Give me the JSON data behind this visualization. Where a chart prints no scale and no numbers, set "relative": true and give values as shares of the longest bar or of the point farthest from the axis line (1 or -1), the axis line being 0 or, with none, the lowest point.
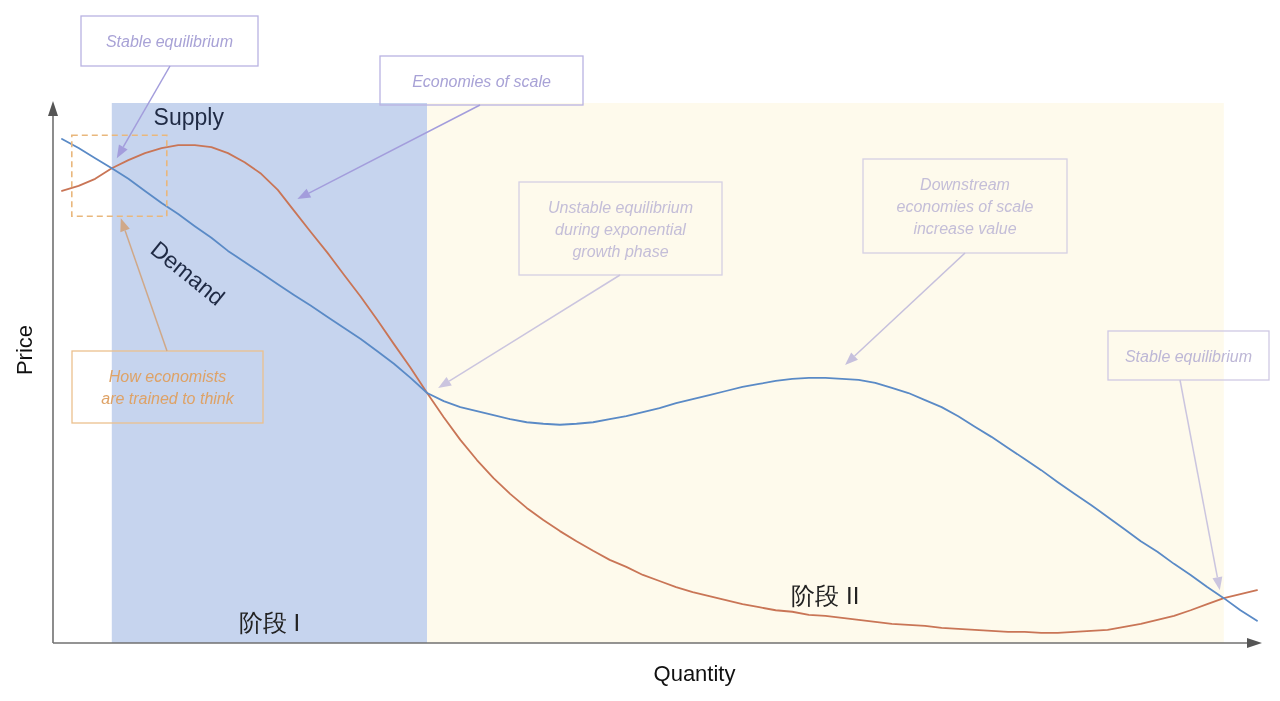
{
  "chart_data": {
    "type": "line",
    "relative": true,
    "xlabel": "Quantity",
    "ylabel": "Price",
    "categories": [
      null,
      null,
      null,
      null,
      null,
      null,
      null,
      null,
      null,
      null,
      null,
      null,
      null,
      null,
      null,
      null,
      null,
      null,
      null,
      null,
      null,
      null,
      null,
      null,
      null,
      null,
      null,
      null,
      null,
      null,
      null,
      null,
      null,
      null,
      null,
      null,
      null,
      null,
      null,
      null,
      null,
      null,
      null,
      null,
      null,
      null,
      null,
      null,
      null,
      null,
      null,
      null,
      null,
      null,
      null,
      null,
      null,
      null,
      null,
      null,
      null,
      null,
      null,
      null,
      null,
      null,
      null,
      null,
      null,
      null,
      null,
      null,
      null
    ],
    "series": [
      {
        "name": "Supply",
        "color": "#c97556",
        "values": [
          0.897,
          0.907,
          0.921,
          0.942,
          0.958,
          0.972,
          0.982,
          0.988,
          0.988,
          0.984,
          0.972,
          0.954,
          0.931,
          0.899,
          0.857,
          0.815,
          0.774,
          0.73,
          0.687,
          0.641,
          0.593,
          0.546,
          0.496,
          0.448,
          0.403,
          0.363,
          0.327,
          0.296,
          0.268,
          0.244,
          0.222,
          0.202,
          0.183,
          0.165,
          0.151,
          0.135,
          0.123,
          0.111,
          0.101,
          0.093,
          0.085,
          0.077,
          0.071,
          0.065,
          0.062,
          0.056,
          0.054,
          0.05,
          0.046,
          0.042,
          0.038,
          0.036,
          0.034,
          0.03,
          0.028,
          0.026,
          0.024,
          0.022,
          0.022,
          0.02,
          0.02,
          0.022,
          0.024,
          0.026,
          0.032,
          0.038,
          0.046,
          0.054,
          0.065,
          0.077,
          0.089,
          0.097,
          0.105
        ]
      },
      {
        "name": "Demand",
        "color": "#5a8ac6",
        "values": [
          1,
          0.982,
          0.962,
          0.942,
          0.921,
          0.897,
          0.873,
          0.851,
          0.827,
          0.804,
          0.778,
          0.756,
          0.734,
          0.712,
          0.69,
          0.669,
          0.647,
          0.625,
          0.603,
          0.579,
          0.554,
          0.526,
          0.496,
          0.48,
          0.468,
          0.46,
          0.452,
          0.444,
          0.438,
          0.435,
          0.433,
          0.435,
          0.438,
          0.444,
          0.45,
          0.458,
          0.466,
          0.476,
          0.484,
          0.492,
          0.5,
          0.508,
          0.514,
          0.52,
          0.524,
          0.526,
          0.526,
          0.524,
          0.522,
          0.516,
          0.506,
          0.496,
          0.482,
          0.468,
          0.45,
          0.429,
          0.409,
          0.387,
          0.365,
          0.343,
          0.319,
          0.296,
          0.274,
          0.25,
          0.226,
          0.202,
          0.181,
          0.157,
          0.135,
          0.111,
          0.089,
          0.065,
          0.044
        ]
      }
    ],
    "annotations": [
      "Stable equilibrium",
      "Economies of scale",
      "How economists\nare trained to think",
      "Unstable equilibrium\nduring exponential\ngrowth phase",
      "Downstream\neconomies of scale\nincrease value",
      "Stable equilibrium",
      "阶段 I",
      "阶段 II"
    ]
  }
}
